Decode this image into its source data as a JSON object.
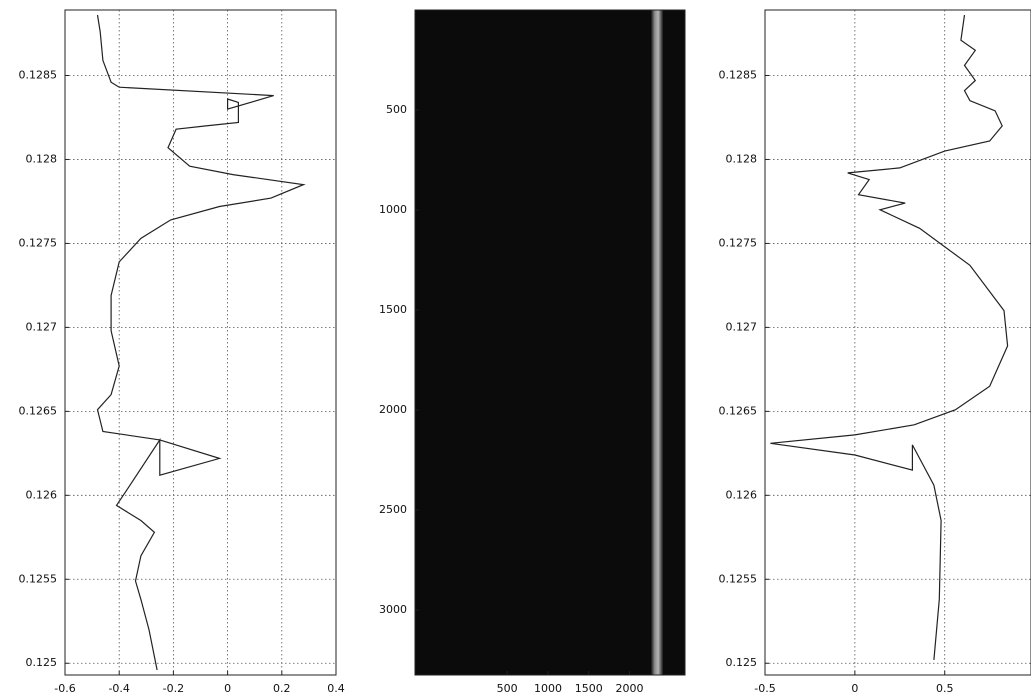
{
  "chart_data": [
    {
      "type": "line",
      "grid": true,
      "xlim": [
        -0.6,
        0.4
      ],
      "xticks": [
        -0.6,
        -0.4,
        -0.2,
        0,
        0.2,
        0.4
      ],
      "ylim": [
        0.12493,
        0.12889
      ],
      "yticks": [
        0.125,
        0.1255,
        0.126,
        0.1265,
        0.127,
        0.1275,
        0.128,
        0.1285
      ],
      "series": [
        {
          "color": "#222222",
          "x": [
            -0.48,
            -0.47,
            -0.46,
            -0.43,
            -0.4,
            0.17,
            0.0,
            0.0,
            0.04,
            0.04,
            -0.08,
            -0.19,
            -0.22,
            -0.14,
            0.02,
            0.28,
            0.16,
            -0.03,
            -0.21,
            -0.32,
            -0.4,
            -0.43,
            -0.43,
            -0.4,
            -0.43,
            -0.48,
            -0.46,
            -0.25,
            -0.03,
            -0.25,
            -0.25,
            -0.36,
            -0.41,
            -0.32,
            -0.27,
            -0.32,
            -0.34,
            -0.32,
            -0.29,
            -0.26
          ],
          "values": [
            0.12886,
            0.12876,
            0.12859,
            0.12846,
            0.12843,
            0.12838,
            0.1283,
            0.12836,
            0.12834,
            0.12822,
            0.1282,
            0.12818,
            0.12807,
            0.12796,
            0.12791,
            0.12785,
            0.12777,
            0.12772,
            0.12764,
            0.12753,
            0.12739,
            0.12719,
            0.12698,
            0.12677,
            0.1266,
            0.12651,
            0.12638,
            0.12633,
            0.12622,
            0.12612,
            0.12633,
            0.12606,
            0.12594,
            0.12585,
            0.12578,
            0.12564,
            0.12549,
            0.12538,
            0.1252,
            0.12496
          ]
        }
      ]
    },
    {
      "type": "image",
      "xlim": [
        -630,
        2680
      ],
      "xticks": [
        500,
        1000,
        1500,
        2000
      ],
      "ylim": [
        0,
        3325
      ],
      "yticks": [
        500,
        1000,
        1500,
        2000,
        2500,
        3000
      ],
      "y_reversed": true
    },
    {
      "type": "line",
      "grid": true,
      "xlim": [
        -0.5,
        0.98
      ],
      "xticks": [
        -0.5,
        0,
        0.5
      ],
      "ylim": [
        0.12493,
        0.12889
      ],
      "yticks": [
        0.125,
        0.1255,
        0.126,
        0.1265,
        0.127,
        0.1275,
        0.128,
        0.1285
      ],
      "series": [
        {
          "color": "#222222",
          "x": [
            0.61,
            0.59,
            0.67,
            0.61,
            0.67,
            0.61,
            0.64,
            0.78,
            0.82,
            0.75,
            0.5,
            0.25,
            -0.04,
            0.08,
            0.02,
            0.28,
            0.14,
            0.36,
            0.64,
            0.83,
            0.85,
            0.75,
            0.56,
            0.33,
            0.0,
            -0.47,
            0.0,
            0.32,
            0.32,
            0.44,
            0.48,
            0.47,
            0.44
          ],
          "values": [
            0.12886,
            0.12871,
            0.12865,
            0.12856,
            0.12847,
            0.12841,
            0.12835,
            0.12829,
            0.1282,
            0.12811,
            0.12805,
            0.12795,
            0.12792,
            0.12788,
            0.12779,
            0.12774,
            0.1277,
            0.12759,
            0.12737,
            0.1271,
            0.12689,
            0.12665,
            0.12651,
            0.12642,
            0.12636,
            0.12631,
            0.12624,
            0.12615,
            0.1263,
            0.12606,
            0.12585,
            0.12538,
            0.12502
          ]
        }
      ]
    }
  ]
}
